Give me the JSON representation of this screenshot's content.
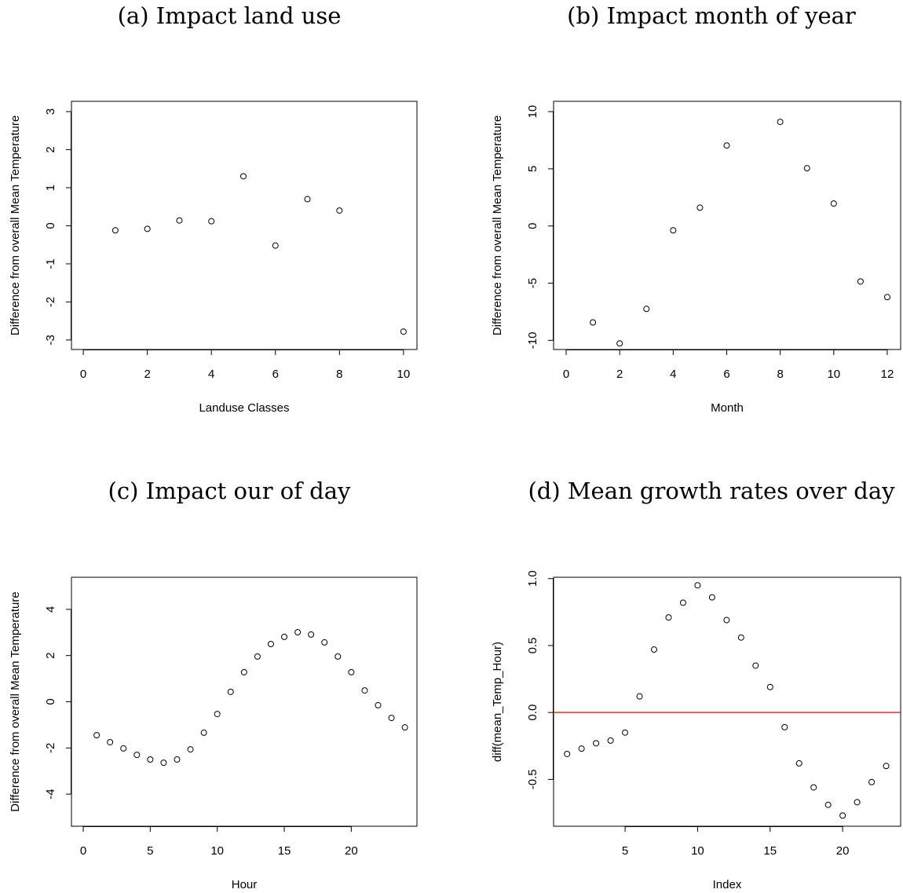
{
  "chart_data": [
    {
      "type": "scatter",
      "title": "(a) Impact land use",
      "xlabel": "Landuse Classes",
      "ylabel": "Difference from overall Mean Temperature",
      "x": [
        1,
        2,
        3,
        4,
        5,
        6,
        7,
        8,
        10
      ],
      "values": [
        -0.12,
        -0.08,
        0.14,
        0.12,
        1.3,
        -0.52,
        0.7,
        0.4,
        -2.78
      ],
      "xlim": [
        -0.37,
        10.42
      ],
      "ylim": [
        -3.25,
        3.27
      ],
      "xticks": [
        0,
        2,
        4,
        6,
        8,
        10
      ],
      "yticks": [
        -3,
        -2,
        -1,
        0,
        1,
        2,
        3
      ],
      "color": "#000000"
    },
    {
      "type": "scatter",
      "title": "(b) Impact month of year",
      "xlabel": "Month",
      "ylabel": "Difference from overall Mean Temperature",
      "x": [
        1,
        2,
        3,
        4,
        5,
        6,
        8,
        9,
        10,
        11,
        12
      ],
      "values": [
        -8.43,
        -10.27,
        -7.25,
        -0.38,
        1.6,
        7.04,
        9.1,
        5.05,
        1.96,
        -4.85,
        -6.22
      ],
      "xlim": [
        -0.47,
        12.5
      ],
      "ylim": [
        -10.8,
        10.9
      ],
      "xticks": [
        0,
        2,
        4,
        6,
        8,
        10,
        12
      ],
      "yticks": [
        -10,
        -5,
        0,
        5,
        10
      ],
      "color": "#000000"
    },
    {
      "type": "scatter",
      "title": "(c) Impact our of day",
      "xlabel": "Hour",
      "ylabel": "Difference from overall Mean Temperature",
      "x": [
        1,
        2,
        3,
        4,
        5,
        6,
        7,
        8,
        9,
        10,
        11,
        12,
        13,
        14,
        15,
        16,
        17,
        18,
        19,
        20,
        21,
        22,
        23,
        24
      ],
      "values": [
        -1.45,
        -1.75,
        -2.02,
        -2.3,
        -2.5,
        -2.64,
        -2.5,
        -2.06,
        -1.34,
        -0.53,
        0.43,
        1.28,
        1.96,
        2.5,
        2.81,
        3.01,
        2.91,
        2.57,
        1.96,
        1.28,
        0.49,
        -0.15,
        -0.7,
        -1.11
      ],
      "xlim": [
        -0.88,
        24.9
      ],
      "ylim": [
        -5.39,
        5.39
      ],
      "xticks": [
        0,
        5,
        10,
        15,
        20
      ],
      "yticks": [
        -4,
        -2,
        0,
        2,
        4
      ],
      "color": "#000000"
    },
    {
      "type": "scatter",
      "title": "(d) Mean growth rates over day",
      "xlabel": "Index",
      "ylabel": "diff(mean_Temp_Hour)",
      "x": [
        1,
        2,
        3,
        4,
        5,
        6,
        7,
        8,
        9,
        10,
        11,
        12,
        13,
        14,
        15,
        16,
        17,
        18,
        19,
        20,
        21,
        22,
        23
      ],
      "values": [
        -0.31,
        -0.27,
        -0.23,
        -0.21,
        -0.15,
        0.12,
        0.47,
        0.71,
        0.82,
        0.95,
        0.86,
        0.69,
        0.56,
        0.35,
        0.19,
        -0.11,
        -0.38,
        -0.56,
        -0.69,
        -0.77,
        -0.67,
        -0.52,
        -0.4
      ],
      "xlim": [
        0.07,
        24.0
      ],
      "ylim": [
        -0.85,
        1.01
      ],
      "xticks": [
        5,
        10,
        15,
        20
      ],
      "yticks": [
        -0.5,
        {
          "value": 0,
          "label": "0.0"
        },
        0.5,
        {
          "value": 1,
          "label": "1.0"
        }
      ],
      "color": "#000000",
      "hline": 0,
      "hline_color": "#ff0000"
    }
  ]
}
